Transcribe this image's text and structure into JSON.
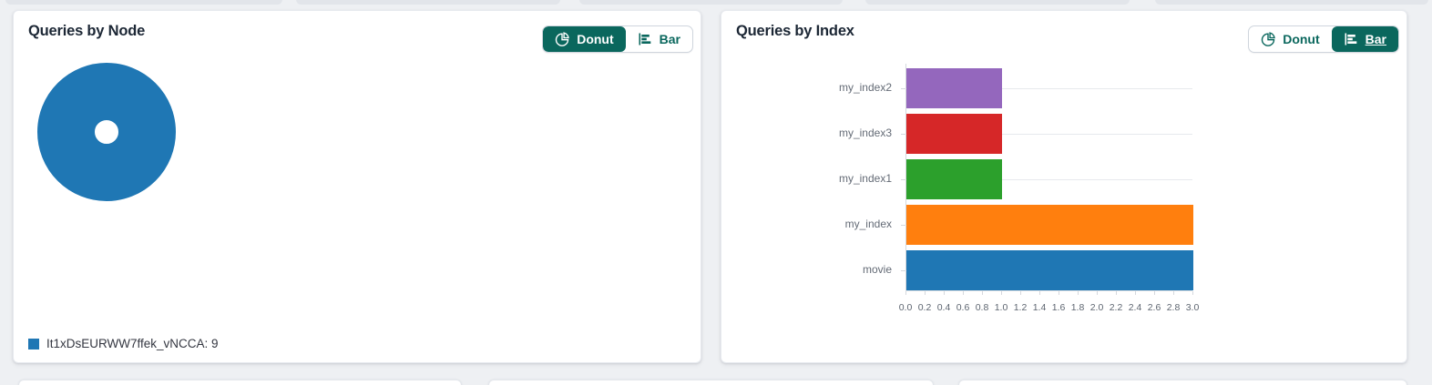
{
  "theme": {
    "accent_teal": "#0a675d",
    "page_bg": "#eef0f3",
    "donut_blue": "#1f77b4"
  },
  "panels": [
    {
      "title": "Queries by Node",
      "toggle": {
        "donut_label": "Donut",
        "bar_label": "Bar",
        "selected": "Donut"
      },
      "chart_data": {
        "type": "donut",
        "slices": [
          {
            "label": "It1xDsEURWW7ffek_vNCCA",
            "value": 9,
            "color": "#1f77b4"
          }
        ],
        "legend_position": "bottom-left"
      }
    },
    {
      "title": "Queries by Index",
      "toggle": {
        "donut_label": "Donut",
        "bar_label": "Bar",
        "selected": "Bar"
      },
      "chart_data": {
        "type": "bar",
        "orientation": "horizontal",
        "categories": [
          "my_index2",
          "my_index3",
          "my_index1",
          "my_index",
          "movie"
        ],
        "values": [
          1,
          1,
          1,
          3,
          3
        ],
        "colors": [
          "#9467bd",
          "#d62728",
          "#2ca02c",
          "#ff7f0e",
          "#1f77b4"
        ],
        "xlim": [
          0,
          3
        ],
        "tick_step": 0.2,
        "tick_labels": [
          "0.0",
          "0.2",
          "0.4",
          "0.6",
          "0.8",
          "1.0",
          "1.2",
          "1.4",
          "1.6",
          "1.8",
          "2.0",
          "2.2",
          "2.4",
          "2.6",
          "2.8",
          "3.0"
        ],
        "grid": true,
        "legend": false
      }
    }
  ]
}
